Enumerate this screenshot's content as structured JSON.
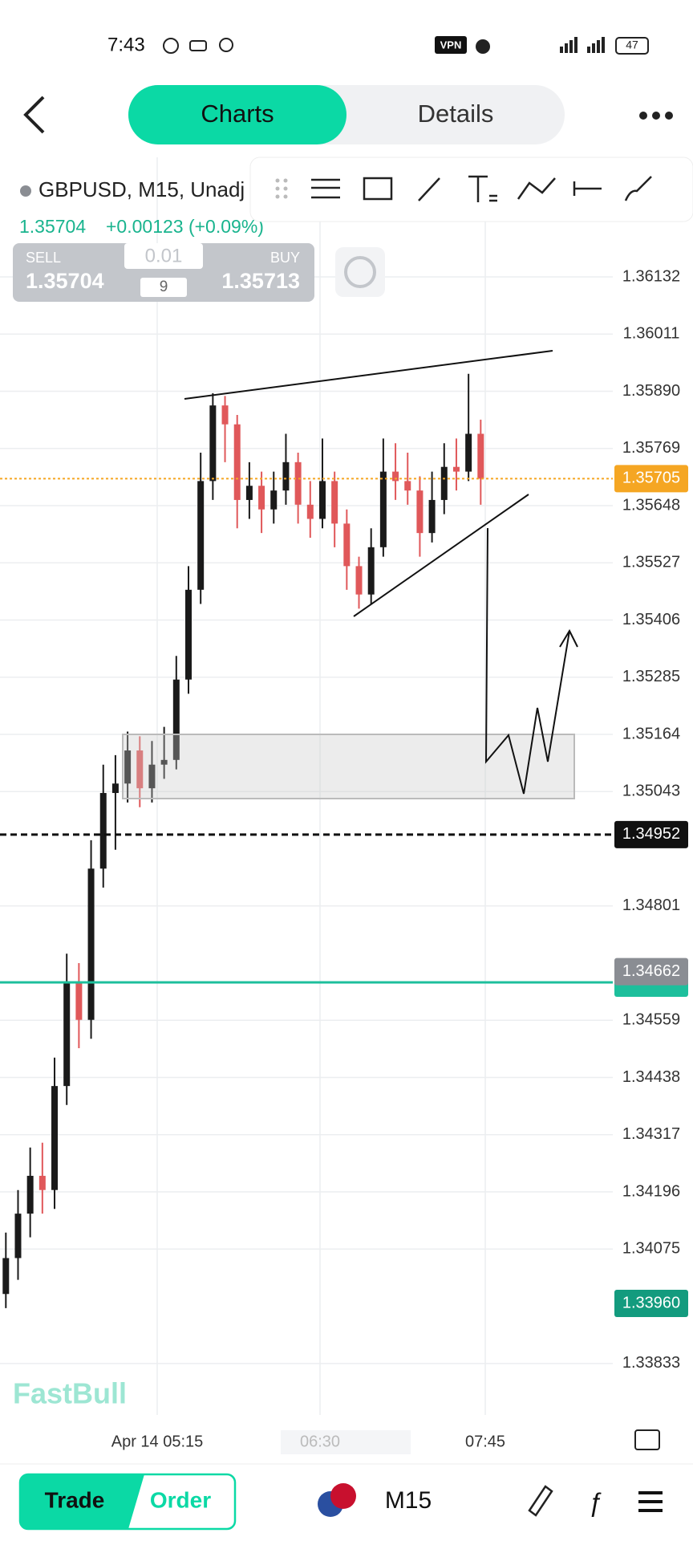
{
  "status_bar": {
    "time": "7:43",
    "vpn": "VPN",
    "battery": "47"
  },
  "header": {
    "tabs": [
      "Charts",
      "Details"
    ]
  },
  "symbol": {
    "name": "GBPUSD, M15, Unadj"
  },
  "quote": {
    "price": "1.35704",
    "change": "+0.00123 (+0.09%)"
  },
  "trade_panel": {
    "sell_label": "SELL",
    "sell_price": "1.35704",
    "lot": "0.01",
    "spread": "9",
    "buy_label": "BUY",
    "buy_price": "1.35713"
  },
  "chart_data": {
    "type": "candlestick",
    "ylim": [
      1.33724,
      1.36385
    ],
    "yticks": [
      {
        "value": 1.36132,
        "label": "1.36132"
      },
      {
        "value": 1.36011,
        "label": "1.36011"
      },
      {
        "value": 1.3589,
        "label": "1.35890"
      },
      {
        "value": 1.35769,
        "label": "1.35769"
      },
      {
        "value": 1.35648,
        "label": "1.35648"
      },
      {
        "value": 1.35527,
        "label": "1.35527"
      },
      {
        "value": 1.35406,
        "label": "1.35406"
      },
      {
        "value": 1.35285,
        "label": "1.35285"
      },
      {
        "value": 1.35164,
        "label": "1.35164"
      },
      {
        "value": 1.35043,
        "label": "1.35043"
      },
      {
        "value": 1.34801,
        "label": "1.34801"
      },
      {
        "value": 1.34559,
        "label": "1.34559"
      },
      {
        "value": 1.34438,
        "label": "1.34438"
      },
      {
        "value": 1.34317,
        "label": "1.34317"
      },
      {
        "value": 1.34196,
        "label": "1.34196"
      },
      {
        "value": 1.34075,
        "label": "1.34075"
      },
      {
        "value": 1.33833,
        "label": "1.33833"
      }
    ],
    "grid": true,
    "up_color": "#1a1a1a",
    "down_color": "#e0585a",
    "price_badges": [
      {
        "value": 1.35705,
        "label": "1.35705",
        "color": "#f5a623",
        "line": "dotted"
      },
      {
        "value": 1.34952,
        "label": "1.34952",
        "color": "#111111",
        "line": "dashed"
      },
      {
        "value": 1.34662,
        "label": "1.34662",
        "color": "#8a8d93",
        "line": "none"
      },
      {
        "value": 1.3396,
        "label": "1.33960",
        "color": "#139b7e",
        "line": "none"
      }
    ],
    "x_labels": [
      "Apr 14 05:15",
      "06:30",
      "07:45"
    ],
    "candles": [
      [
        1.3398,
        1.3411,
        1.3395,
        1.34056
      ],
      [
        1.34056,
        1.342,
        1.3401,
        1.3415
      ],
      [
        1.3415,
        1.3429,
        1.341,
        1.3423
      ],
      [
        1.3423,
        1.343,
        1.3415,
        1.342
      ],
      [
        1.342,
        1.3448,
        1.3416,
        1.3442
      ],
      [
        1.3442,
        1.347,
        1.3438,
        1.3464
      ],
      [
        1.3464,
        1.3468,
        1.345,
        1.3456
      ],
      [
        1.3456,
        1.3494,
        1.3452,
        1.3488
      ],
      [
        1.3488,
        1.351,
        1.3484,
        1.3504
      ],
      [
        1.3504,
        1.3512,
        1.3492,
        1.3506
      ],
      [
        1.3506,
        1.3517,
        1.3502,
        1.3513
      ],
      [
        1.3513,
        1.3516,
        1.3501,
        1.3505
      ],
      [
        1.3505,
        1.3515,
        1.3502,
        1.351
      ],
      [
        1.351,
        1.3518,
        1.3507,
        1.3511
      ],
      [
        1.3511,
        1.3533,
        1.3509,
        1.3528
      ],
      [
        1.3528,
        1.3552,
        1.3525,
        1.3547
      ],
      [
        1.3547,
        1.3576,
        1.3544,
        1.357
      ],
      [
        1.357,
        1.35886,
        1.3566,
        1.3586
      ],
      [
        1.3586,
        1.3588,
        1.3574,
        1.3582
      ],
      [
        1.3582,
        1.3584,
        1.356,
        1.3566
      ],
      [
        1.3566,
        1.3574,
        1.3562,
        1.3569
      ],
      [
        1.3569,
        1.3572,
        1.3559,
        1.3564
      ],
      [
        1.3564,
        1.3572,
        1.3561,
        1.3568
      ],
      [
        1.3568,
        1.358,
        1.3565,
        1.3574
      ],
      [
        1.3574,
        1.3576,
        1.3561,
        1.3565
      ],
      [
        1.3565,
        1.357,
        1.3558,
        1.3562
      ],
      [
        1.3562,
        1.3579,
        1.356,
        1.357
      ],
      [
        1.357,
        1.3572,
        1.3556,
        1.3561
      ],
      [
        1.3561,
        1.3564,
        1.3547,
        1.3552
      ],
      [
        1.3552,
        1.3554,
        1.3543,
        1.3546
      ],
      [
        1.3546,
        1.356,
        1.3544,
        1.3556
      ],
      [
        1.3556,
        1.3579,
        1.3554,
        1.3572
      ],
      [
        1.3572,
        1.3578,
        1.3566,
        1.357
      ],
      [
        1.357,
        1.3576,
        1.3565,
        1.3568
      ],
      [
        1.3568,
        1.3571,
        1.3554,
        1.3559
      ],
      [
        1.3559,
        1.3572,
        1.3557,
        1.3566
      ],
      [
        1.3566,
        1.3578,
        1.3563,
        1.3573
      ],
      [
        1.3573,
        1.3579,
        1.3568,
        1.3572
      ],
      [
        1.3572,
        1.35927,
        1.357,
        1.358
      ],
      [
        1.358,
        1.3583,
        1.3565,
        1.35705
      ]
    ]
  },
  "watermark": "FastBull",
  "bottom_bar": {
    "trade": "Trade",
    "order": "Order",
    "timeframe": "M15"
  }
}
